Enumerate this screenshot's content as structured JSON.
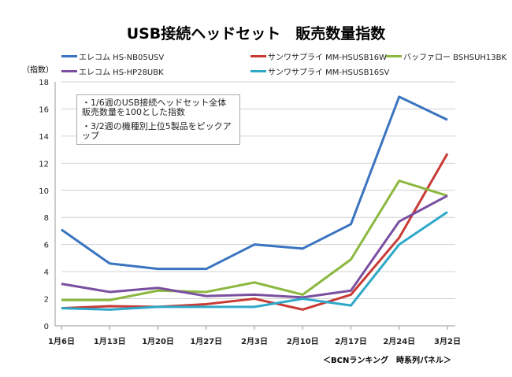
{
  "chart_data": {
    "type": "line",
    "title": "USB接続ヘッドセット　販売数量指数",
    "ylabel": "（指数）",
    "ylim": [
      0,
      18
    ],
    "yticks": [
      0,
      2,
      4,
      6,
      8,
      10,
      12,
      14,
      16,
      18
    ],
    "grid": true,
    "legend_placement": "top",
    "categories": [
      "1月6日",
      "1月13日",
      "1月20日",
      "1月27日",
      "2月3日",
      "2月10日",
      "2月17日",
      "2月24日",
      "3月2日"
    ],
    "series": [
      {
        "name": "エレコム HS-NB05USV",
        "color": "#3a74c0",
        "values": [
          7.1,
          4.6,
          4.2,
          4.2,
          6.0,
          5.7,
          7.5,
          16.9,
          15.2
        ]
      },
      {
        "name": "サンワサプライ MM-HSUSB16W",
        "color": "#c83a35",
        "values": [
          1.3,
          1.45,
          1.4,
          1.6,
          2.0,
          1.2,
          2.3,
          6.5,
          12.7
        ]
      },
      {
        "name": "バッファロー BSHSUH13BK",
        "color": "#8cb840",
        "values": [
          1.9,
          1.9,
          2.6,
          2.5,
          3.2,
          2.3,
          4.9,
          10.7,
          9.6
        ]
      },
      {
        "name": "エレコム HS-HP28UBK",
        "color": "#7a4fa0",
        "values": [
          3.1,
          2.5,
          2.8,
          2.2,
          2.3,
          2.1,
          2.6,
          7.7,
          9.6
        ]
      },
      {
        "name": "サンワサプライ MM-HSUSB16SV",
        "color": "#2fa8c8",
        "values": [
          1.3,
          1.2,
          1.4,
          1.4,
          1.4,
          2.0,
          1.5,
          6.0,
          8.4
        ]
      }
    ],
    "annotations": [
      "・1/6週のUSB接続ヘッドセット全体販売数量を100とした指数",
      "・3/2週の機種別上位5製品をピックアップ"
    ],
    "source": "＜BCNランキング　時系列パネル＞"
  }
}
